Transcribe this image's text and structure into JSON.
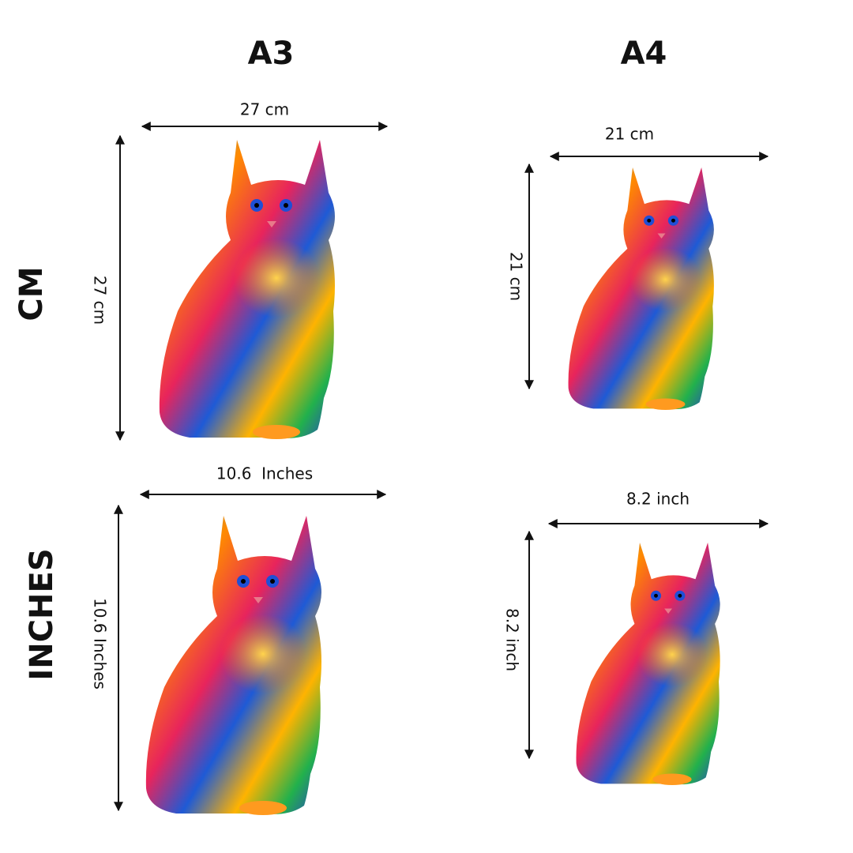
{
  "columns": [
    "A3",
    "A4"
  ],
  "rows": [
    {
      "label": "CM",
      "panels": [
        {
          "width": "27 cm",
          "height": "27 cm"
        },
        {
          "width": "21 cm",
          "height": "21 cm"
        }
      ]
    },
    {
      "label": "INCHES",
      "panels": [
        {
          "width": "10.6  Inches",
          "height": "10.6 Inches"
        },
        {
          "width": "8.2 inch",
          "height": "8.2 inch"
        }
      ]
    }
  ]
}
